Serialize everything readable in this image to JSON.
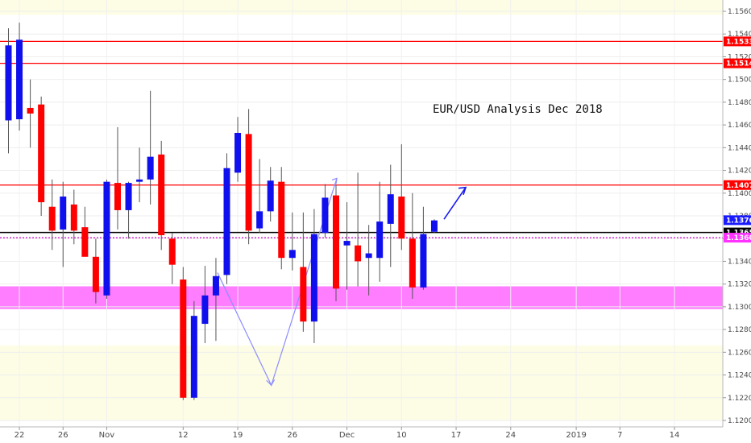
{
  "chart_data": {
    "type": "candlestick",
    "title": "EUR/USD Analysis Dec 2018",
    "ylim": [
      1.12,
      1.157
    ],
    "y_ticks": [
      "1.15600",
      "1.15400",
      "1.15200",
      "1.15000",
      "1.14800",
      "1.14600",
      "1.14400",
      "1.14200",
      "1.14000",
      "1.13800",
      "1.13600",
      "1.13400",
      "1.13200",
      "1.13000",
      "1.12800",
      "1.12600",
      "1.12400",
      "1.12200",
      "1.12000"
    ],
    "x_ticks": [
      {
        "label": "22",
        "index": 1
      },
      {
        "label": "26",
        "index": 5
      },
      {
        "label": "Nov",
        "index": 9
      },
      {
        "label": "12",
        "index": 16
      },
      {
        "label": "19",
        "index": 21
      },
      {
        "label": "26",
        "index": 26
      },
      {
        "label": "Dec",
        "index": 31
      },
      {
        "label": "10",
        "index": 36
      },
      {
        "label": "17",
        "index": 41
      },
      {
        "label": "24",
        "index": 46
      },
      {
        "label": "2019",
        "index": 52
      },
      {
        "label": "7",
        "index": 56
      },
      {
        "label": "14",
        "index": 61
      }
    ],
    "candles": [
      {
        "o": 1.1464,
        "h": 1.1545,
        "l": 1.1435,
        "c": 1.153
      },
      {
        "o": 1.1465,
        "h": 1.155,
        "l": 1.1455,
        "c": 1.1535
      },
      {
        "o": 1.1475,
        "h": 1.15,
        "l": 1.144,
        "c": 1.147
      },
      {
        "o": 1.1478,
        "h": 1.1485,
        "l": 1.138,
        "c": 1.1392
      },
      {
        "o": 1.1388,
        "h": 1.1412,
        "l": 1.135,
        "c": 1.1367
      },
      {
        "o": 1.1368,
        "h": 1.141,
        "l": 1.1335,
        "c": 1.1397
      },
      {
        "o": 1.139,
        "h": 1.1403,
        "l": 1.1355,
        "c": 1.1367
      },
      {
        "o": 1.137,
        "h": 1.1388,
        "l": 1.1345,
        "c": 1.1344
      },
      {
        "o": 1.1344,
        "h": 1.136,
        "l": 1.1303,
        "c": 1.1313
      },
      {
        "o": 1.131,
        "h": 1.1412,
        "l": 1.1307,
        "c": 1.141
      },
      {
        "o": 1.1409,
        "h": 1.1458,
        "l": 1.1368,
        "c": 1.1385
      },
      {
        "o": 1.1385,
        "h": 1.141,
        "l": 1.136,
        "c": 1.1409
      },
      {
        "o": 1.141,
        "h": 1.144,
        "l": 1.1392,
        "c": 1.1412
      },
      {
        "o": 1.1412,
        "h": 1.149,
        "l": 1.139,
        "c": 1.1432
      },
      {
        "o": 1.1434,
        "h": 1.1446,
        "l": 1.135,
        "c": 1.1363
      },
      {
        "o": 1.136,
        "h": 1.1365,
        "l": 1.132,
        "c": 1.1337
      },
      {
        "o": 1.1324,
        "h": 1.1335,
        "l": 1.1218,
        "c": 1.122
      },
      {
        "o": 1.122,
        "h": 1.1305,
        "l": 1.1218,
        "c": 1.1292
      },
      {
        "o": 1.1285,
        "h": 1.1336,
        "l": 1.1268,
        "c": 1.131
      },
      {
        "o": 1.131,
        "h": 1.1343,
        "l": 1.127,
        "c": 1.1327
      },
      {
        "o": 1.1328,
        "h": 1.1435,
        "l": 1.132,
        "c": 1.1422
      },
      {
        "o": 1.1418,
        "h": 1.1467,
        "l": 1.141,
        "c": 1.1453
      },
      {
        "o": 1.1452,
        "h": 1.1474,
        "l": 1.1355,
        "c": 1.1367
      },
      {
        "o": 1.1369,
        "h": 1.143,
        "l": 1.1365,
        "c": 1.1384
      },
      {
        "o": 1.1384,
        "h": 1.1423,
        "l": 1.1375,
        "c": 1.1411
      },
      {
        "o": 1.141,
        "h": 1.1423,
        "l": 1.1333,
        "c": 1.1343
      },
      {
        "o": 1.1343,
        "h": 1.1383,
        "l": 1.1332,
        "c": 1.135
      },
      {
        "o": 1.1335,
        "h": 1.1383,
        "l": 1.1278,
        "c": 1.1287
      },
      {
        "o": 1.1287,
        "h": 1.1386,
        "l": 1.1268,
        "c": 1.1364
      },
      {
        "o": 1.1365,
        "h": 1.1408,
        "l": 1.1361,
        "c": 1.1396
      },
      {
        "o": 1.1398,
        "h": 1.1407,
        "l": 1.1305,
        "c": 1.1316
      },
      {
        "o": 1.1354,
        "h": 1.1392,
        "l": 1.1315,
        "c": 1.1358
      },
      {
        "o": 1.1354,
        "h": 1.1418,
        "l": 1.1318,
        "c": 1.134
      },
      {
        "o": 1.1343,
        "h": 1.1372,
        "l": 1.131,
        "c": 1.1347
      },
      {
        "o": 1.1343,
        "h": 1.141,
        "l": 1.1322,
        "c": 1.1375
      },
      {
        "o": 1.1373,
        "h": 1.1425,
        "l": 1.1335,
        "c": 1.1399
      },
      {
        "o": 1.1397,
        "h": 1.1443,
        "l": 1.135,
        "c": 1.136
      },
      {
        "o": 1.136,
        "h": 1.14,
        "l": 1.1307,
        "c": 1.1317
      },
      {
        "o": 1.1317,
        "h": 1.1388,
        "l": 1.1315,
        "c": 1.1364
      },
      {
        "o": 1.1366,
        "h": 1.1377,
        "l": 1.1365,
        "c": 1.1376
      }
    ],
    "horizontal_levels": [
      {
        "price": "1.15335",
        "value": 1.15335,
        "color": "#ff0000",
        "label_bg": "#ff0000"
      },
      {
        "price": "1.15142",
        "value": 1.15142,
        "color": "#ff0000",
        "label_bg": "#ff0000"
      },
      {
        "price": "1.14071",
        "value": 1.14071,
        "color": "#ff0000",
        "label_bg": "#ff0000"
      },
      {
        "price": "1.13654",
        "value": 1.13654,
        "color": "#000000",
        "label_bg": "#000000"
      },
      {
        "price": "1.13608",
        "value": 1.13608,
        "color": "#cc00cc",
        "label_bg": "#ff33ff"
      }
    ],
    "last_price": {
      "price": "1.13762",
      "value": 1.13762,
      "label_bg": "#1a1aff"
    },
    "zones": [
      {
        "from": 1.1298,
        "to": 1.1318,
        "color": "#ff66ff"
      },
      {
        "from": 1.12,
        "to": 1.1266,
        "color": "#fdfde5"
      },
      {
        "from": 1.1557,
        "to": 1.157,
        "color": "#fdfde5"
      }
    ],
    "bull_color": "#1010ee",
    "bear_color": "#ff0000",
    "grid": true
  }
}
